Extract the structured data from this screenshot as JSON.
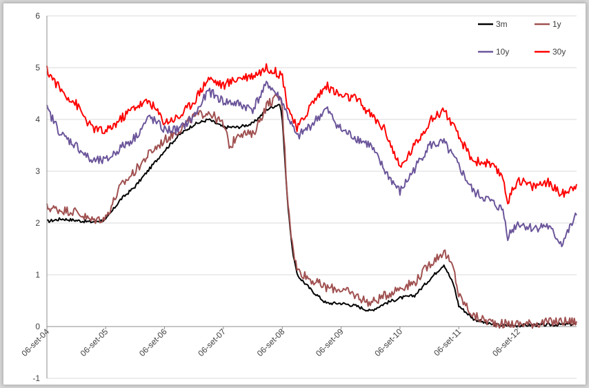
{
  "chart_data": {
    "type": "line",
    "title": "",
    "xlabel": "",
    "ylabel": "",
    "ylim": [
      -1,
      6
    ],
    "xlim": [
      "2004-09-06",
      "2013-09-06"
    ],
    "yticks": [
      "6",
      "5",
      "4",
      "3",
      "2",
      "1",
      "0",
      "-1"
    ],
    "y_tick_values": [
      6,
      5,
      4,
      3,
      2,
      1,
      0,
      -1
    ],
    "xticks": [
      "06-set-04",
      "06-set-05",
      "06-set-06",
      "06-set-07",
      "06-set-08",
      "06-set-09",
      "06-set-10",
      "06-set-11",
      "06-set-12"
    ],
    "grid": "horizontal",
    "legend_position": "top-right",
    "series": [
      {
        "name": "3m",
        "color": "#000000",
        "points": [
          [
            "2004-09-06",
            2.03
          ],
          [
            "2004-12-06",
            2.08
          ],
          [
            "2005-03-06",
            2.05
          ],
          [
            "2005-06-06",
            2.02
          ],
          [
            "2005-09-06",
            2.06
          ],
          [
            "2005-12-06",
            2.45
          ],
          [
            "2006-03-06",
            2.7
          ],
          [
            "2006-06-06",
            3.05
          ],
          [
            "2006-09-06",
            3.4
          ],
          [
            "2006-12-06",
            3.7
          ],
          [
            "2007-03-06",
            3.9
          ],
          [
            "2007-06-06",
            4.0
          ],
          [
            "2007-09-06",
            3.85
          ],
          [
            "2007-12-06",
            3.85
          ],
          [
            "2008-03-06",
            3.92
          ],
          [
            "2008-06-06",
            4.2
          ],
          [
            "2008-08-20",
            4.3
          ],
          [
            "2008-09-06",
            4.0
          ],
          [
            "2008-10-06",
            2.5
          ],
          [
            "2008-11-06",
            1.5
          ],
          [
            "2008-12-06",
            1.0
          ],
          [
            "2009-03-06",
            0.7
          ],
          [
            "2009-06-06",
            0.45
          ],
          [
            "2009-09-06",
            0.45
          ],
          [
            "2009-12-06",
            0.4
          ],
          [
            "2010-03-06",
            0.3
          ],
          [
            "2010-06-06",
            0.45
          ],
          [
            "2010-09-06",
            0.55
          ],
          [
            "2010-12-06",
            0.6
          ],
          [
            "2011-03-06",
            0.9
          ],
          [
            "2011-06-06",
            1.2
          ],
          [
            "2011-08-06",
            0.8
          ],
          [
            "2011-09-06",
            0.4
          ],
          [
            "2011-12-06",
            0.15
          ],
          [
            "2012-03-06",
            0.05
          ],
          [
            "2012-06-06",
            0.02
          ],
          [
            "2012-09-06",
            0.02
          ],
          [
            "2012-12-06",
            0.03
          ],
          [
            "2013-03-06",
            0.03
          ],
          [
            "2013-06-06",
            0.04
          ],
          [
            "2013-09-06",
            0.05
          ]
        ]
      },
      {
        "name": "1y",
        "color": "#a05050",
        "points": [
          [
            "2004-09-06",
            2.3
          ],
          [
            "2004-12-06",
            2.25
          ],
          [
            "2005-03-06",
            2.22
          ],
          [
            "2005-06-06",
            2.05
          ],
          [
            "2005-09-06",
            2.1
          ],
          [
            "2005-12-06",
            2.7
          ],
          [
            "2006-03-06",
            3.0
          ],
          [
            "2006-06-06",
            3.35
          ],
          [
            "2006-09-06",
            3.6
          ],
          [
            "2006-12-06",
            3.8
          ],
          [
            "2007-03-06",
            4.05
          ],
          [
            "2007-06-06",
            4.15
          ],
          [
            "2007-09-06",
            3.9
          ],
          [
            "2007-10-20",
            3.45
          ],
          [
            "2007-12-06",
            3.75
          ],
          [
            "2008-03-06",
            3.7
          ],
          [
            "2008-06-06",
            4.3
          ],
          [
            "2008-08-20",
            4.45
          ],
          [
            "2008-09-06",
            4.2
          ],
          [
            "2008-10-06",
            2.6
          ],
          [
            "2008-11-06",
            1.6
          ],
          [
            "2008-12-06",
            1.1
          ],
          [
            "2009-03-06",
            0.9
          ],
          [
            "2009-06-06",
            0.75
          ],
          [
            "2009-09-06",
            0.72
          ],
          [
            "2009-12-06",
            0.6
          ],
          [
            "2010-03-06",
            0.45
          ],
          [
            "2010-06-06",
            0.6
          ],
          [
            "2010-09-06",
            0.75
          ],
          [
            "2010-12-06",
            0.85
          ],
          [
            "2011-03-06",
            1.2
          ],
          [
            "2011-06-06",
            1.45
          ],
          [
            "2011-08-06",
            1.1
          ],
          [
            "2011-09-06",
            0.6
          ],
          [
            "2011-12-06",
            0.2
          ],
          [
            "2012-03-06",
            0.1
          ],
          [
            "2012-06-06",
            0.05
          ],
          [
            "2012-09-06",
            0.05
          ],
          [
            "2012-12-06",
            0.06
          ],
          [
            "2013-03-06",
            0.08
          ],
          [
            "2013-06-06",
            0.1
          ],
          [
            "2013-09-06",
            0.1
          ]
        ]
      },
      {
        "name": "10y",
        "color": "#6b559a",
        "points": [
          [
            "2004-09-06",
            4.2
          ],
          [
            "2004-12-06",
            3.7
          ],
          [
            "2005-03-06",
            3.5
          ],
          [
            "2005-06-06",
            3.2
          ],
          [
            "2005-09-06",
            3.2
          ],
          [
            "2005-12-06",
            3.45
          ],
          [
            "2006-03-06",
            3.65
          ],
          [
            "2006-06-06",
            4.05
          ],
          [
            "2006-09-06",
            3.8
          ],
          [
            "2006-12-06",
            3.8
          ],
          [
            "2007-03-06",
            4.05
          ],
          [
            "2007-06-06",
            4.55
          ],
          [
            "2007-09-06",
            4.35
          ],
          [
            "2007-12-06",
            4.3
          ],
          [
            "2008-03-06",
            4.2
          ],
          [
            "2008-06-06",
            4.7
          ],
          [
            "2008-09-06",
            4.35
          ],
          [
            "2008-10-06",
            4.1
          ],
          [
            "2008-12-06",
            3.65
          ],
          [
            "2009-03-06",
            3.9
          ],
          [
            "2009-06-06",
            4.2
          ],
          [
            "2009-09-06",
            3.8
          ],
          [
            "2009-12-06",
            3.65
          ],
          [
            "2010-03-06",
            3.5
          ],
          [
            "2010-06-06",
            3.0
          ],
          [
            "2010-09-06",
            2.6
          ],
          [
            "2010-12-06",
            3.05
          ],
          [
            "2011-03-06",
            3.5
          ],
          [
            "2011-06-06",
            3.55
          ],
          [
            "2011-09-06",
            3.1
          ],
          [
            "2011-12-06",
            2.6
          ],
          [
            "2012-03-06",
            2.45
          ],
          [
            "2012-06-06",
            2.25
          ],
          [
            "2012-07-06",
            1.75
          ],
          [
            "2012-09-06",
            2.0
          ],
          [
            "2012-12-06",
            1.9
          ],
          [
            "2013-03-06",
            1.95
          ],
          [
            "2013-06-06",
            1.6
          ],
          [
            "2013-09-06",
            2.15
          ]
        ]
      },
      {
        "name": "30y",
        "color": "#ff0000",
        "points": [
          [
            "2004-09-06",
            4.95
          ],
          [
            "2004-12-06",
            4.55
          ],
          [
            "2005-03-06",
            4.3
          ],
          [
            "2005-06-06",
            3.85
          ],
          [
            "2005-09-06",
            3.75
          ],
          [
            "2005-12-06",
            4.0
          ],
          [
            "2006-03-06",
            4.25
          ],
          [
            "2006-06-06",
            4.35
          ],
          [
            "2006-09-06",
            3.95
          ],
          [
            "2006-12-06",
            4.05
          ],
          [
            "2007-03-06",
            4.35
          ],
          [
            "2007-06-06",
            4.8
          ],
          [
            "2007-09-06",
            4.65
          ],
          [
            "2007-12-06",
            4.8
          ],
          [
            "2008-03-06",
            4.85
          ],
          [
            "2008-06-06",
            5.0
          ],
          [
            "2008-09-06",
            4.85
          ],
          [
            "2008-10-06",
            4.3
          ],
          [
            "2008-12-06",
            3.8
          ],
          [
            "2009-03-06",
            4.3
          ],
          [
            "2009-06-06",
            4.65
          ],
          [
            "2009-09-06",
            4.45
          ],
          [
            "2009-12-06",
            4.4
          ],
          [
            "2010-03-06",
            4.1
          ],
          [
            "2010-06-06",
            3.8
          ],
          [
            "2010-09-06",
            3.05
          ],
          [
            "2010-12-06",
            3.5
          ],
          [
            "2011-03-06",
            3.95
          ],
          [
            "2011-06-06",
            4.2
          ],
          [
            "2011-09-06",
            3.65
          ],
          [
            "2011-12-06",
            3.2
          ],
          [
            "2012-03-06",
            3.15
          ],
          [
            "2012-06-06",
            2.9
          ],
          [
            "2012-07-06",
            2.4
          ],
          [
            "2012-09-06",
            2.85
          ],
          [
            "2012-12-06",
            2.7
          ],
          [
            "2013-03-06",
            2.8
          ],
          [
            "2013-06-06",
            2.55
          ],
          [
            "2013-09-06",
            2.75
          ]
        ]
      }
    ]
  }
}
